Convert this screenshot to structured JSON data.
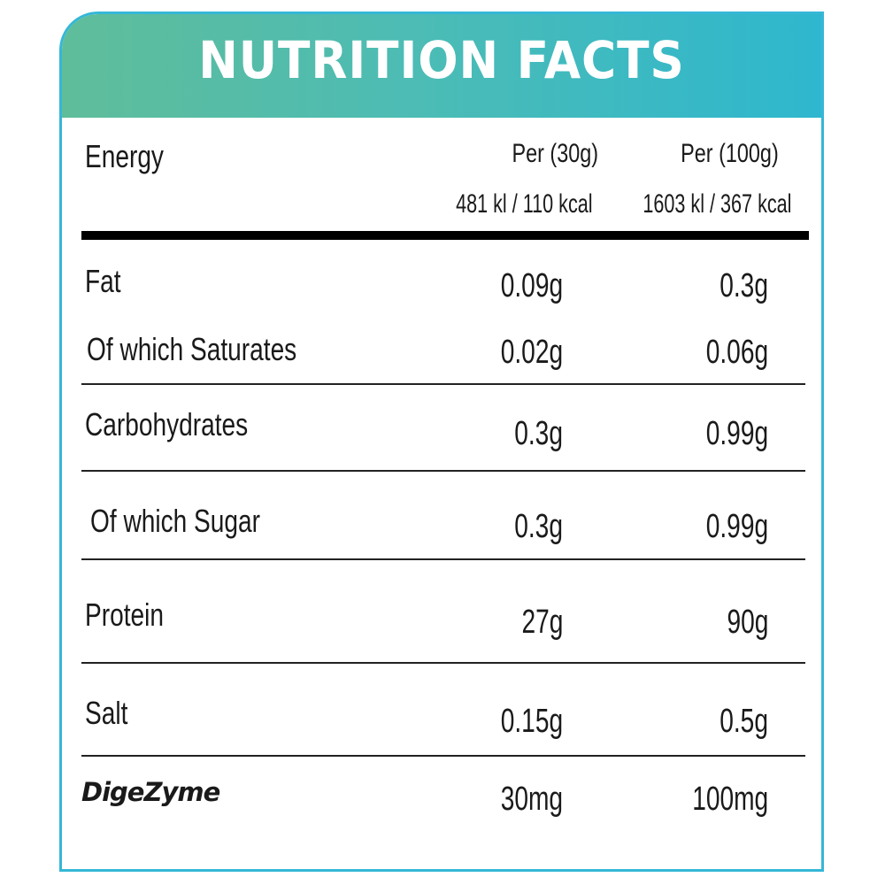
{
  "title": "NUTRITION FACTS",
  "energy": {
    "label": "Energy",
    "col1_header": "Per (30g)",
    "col2_header": "Per (100g)",
    "col1_value": "481 kl / 110 kcal",
    "col2_value": "1603 kl / 367 kcal"
  },
  "rows": [
    {
      "label": "Fat",
      "per30": "0.09g",
      "per100": "0.3g"
    },
    {
      "label": "Of which Saturates",
      "per30": "0.02g",
      "per100": "0.06g"
    },
    {
      "label": "Carbohydrates",
      "per30": "0.3g",
      "per100": "0.99g"
    },
    {
      "label": "Of which Sugar",
      "per30": "0.3g",
      "per100": "0.99g"
    },
    {
      "label": "Protein",
      "per30": "27g",
      "per100": "90g"
    },
    {
      "label": "Salt",
      "per30": "0.15g",
      "per100": "0.5g"
    },
    {
      "label": "DigeZyme",
      "per30": "30mg",
      "per100": "100mg"
    }
  ],
  "colors": {
    "header_start": "#5fbd9a",
    "header_end": "#2eb7ce",
    "border": "#35b7d6",
    "text": "#1a1a1a"
  }
}
